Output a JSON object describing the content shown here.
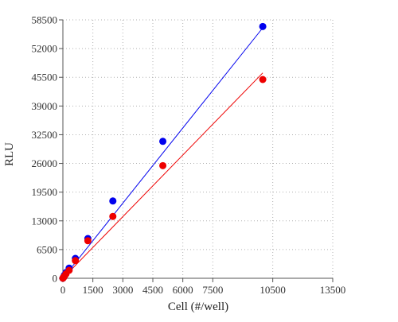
{
  "chart_data": {
    "type": "scatter",
    "title": "",
    "xlabel": "Cell (#/well)",
    "ylabel": "RLU",
    "xlim": [
      0,
      13500
    ],
    "ylim": [
      0,
      58500
    ],
    "x_ticks": [
      0,
      1500,
      3000,
      4500,
      6000,
      7500,
      10500,
      13500
    ],
    "x_tick_labels": [
      "0",
      "1500",
      "3000",
      "4500",
      "6000",
      "7500",
      "10500",
      "13500"
    ],
    "y_ticks": [
      0,
      6500,
      13000,
      19500,
      26000,
      32500,
      39000,
      45500,
      52000,
      58500
    ],
    "y_tick_labels": [
      "0",
      "6500",
      "13000",
      "19500",
      "26000",
      "32500",
      "39000",
      "45500",
      "52000",
      "58500"
    ],
    "grid": true,
    "legend": "none",
    "series": [
      {
        "color": "#0000ee",
        "x": [
          0,
          20,
          39,
          78,
          156,
          313,
          625,
          1250,
          2500,
          5000,
          10000
        ],
        "y": [
          0,
          150,
          300,
          700,
          1300,
          2300,
          4500,
          9000,
          17500,
          31000,
          57000
        ],
        "fit": {
          "x": [
            0,
            10000
          ],
          "y": [
            0,
            56700
          ]
        }
      },
      {
        "color": "#ee0000",
        "x": [
          0,
          20,
          39,
          78,
          156,
          313,
          625,
          1250,
          2500,
          5000,
          10000
        ],
        "y": [
          0,
          120,
          250,
          500,
          1000,
          1800,
          4000,
          8500,
          14000,
          25500,
          45000
        ],
        "fit": {
          "x": [
            0,
            10000
          ],
          "y": [
            0,
            46500
          ]
        }
      }
    ]
  }
}
